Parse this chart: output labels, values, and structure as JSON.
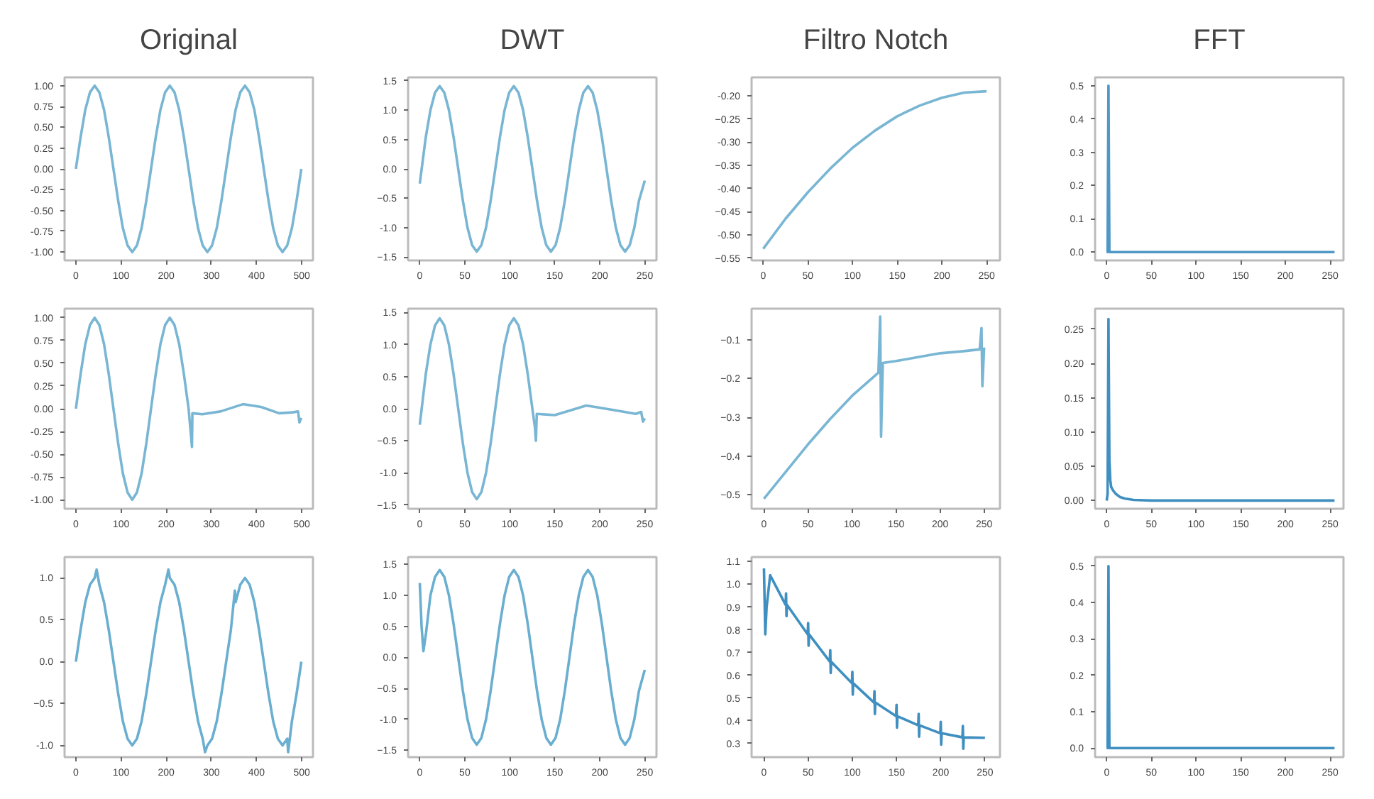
{
  "chart_data": [
    {
      "type": "line",
      "title": "Original",
      "color": "#79b6d3",
      "xlim": [
        -25,
        525
      ],
      "ylim": [
        -1.1,
        1.1
      ],
      "xticks": [
        0,
        100,
        200,
        300,
        400,
        500
      ],
      "yticks": [
        {
          "value": -1,
          "label": "-1.00"
        },
        {
          "value": -0.75,
          "label": "-0.75"
        },
        {
          "value": -0.5,
          "label": "-0.50"
        },
        {
          "value": -0.25,
          "label": "-0.25"
        },
        {
          "value": 0,
          "label": "0.00"
        },
        {
          "value": 0.25,
          "label": "0.25"
        },
        {
          "value": 0.5,
          "label": "0.50"
        },
        {
          "value": 0.75,
          "label": "0.75"
        },
        {
          "value": 1,
          "label": "1.00"
        }
      ],
      "x": [
        0,
        10.4,
        20.8,
        31.2,
        41.6,
        52,
        62.4,
        72.8,
        83.2,
        93.6,
        104,
        114.4,
        124.8,
        135.2,
        145.6,
        156,
        166.4,
        176.8,
        187.2,
        197.6,
        208,
        218.4,
        228.8,
        239.2,
        249.6,
        260,
        270.4,
        280.8,
        291.2,
        301.6,
        312,
        322.4,
        332.8,
        343.2,
        353.6,
        364,
        374.4,
        384.8,
        395.2,
        405.6,
        416,
        426.4,
        436.8,
        447.2,
        457.6,
        468,
        478.4,
        488.8,
        499.2
      ],
      "values": [
        0,
        0.38,
        0.71,
        0.92,
        1,
        0.92,
        0.71,
        0.38,
        0,
        -0.38,
        -0.71,
        -0.92,
        -1,
        -0.92,
        -0.71,
        -0.38,
        0,
        0.38,
        0.71,
        0.92,
        1,
        0.92,
        0.71,
        0.38,
        0,
        -0.38,
        -0.71,
        -0.92,
        -1,
        -0.92,
        -0.71,
        -0.38,
        0,
        0.38,
        0.71,
        0.92,
        1,
        0.92,
        0.71,
        0.38,
        0,
        -0.38,
        -0.71,
        -0.92,
        -1,
        -0.92,
        -0.71,
        -0.38,
        0
      ]
    },
    {
      "type": "line",
      "title": "DWT",
      "color": "#79b6d3",
      "xlim": [
        -13,
        263
      ],
      "ylim": [
        -1.56,
        1.56
      ],
      "xticks": [
        0,
        50,
        100,
        150,
        200,
        250
      ],
      "yticks": [
        -1.5,
        {
          "value": -1,
          "label": "-1.0"
        },
        -0.5,
        {
          "value": 0,
          "label": "0.0"
        },
        0.5,
        {
          "value": 1,
          "label": "1.0"
        },
        1.5
      ],
      "x": [
        0,
        6.65,
        11.8,
        16.95,
        22.1,
        27.25,
        32.4,
        37.55,
        42.7,
        47.85,
        53,
        58.15,
        63.3,
        68.45,
        73.6,
        78.75,
        83.9,
        89.05,
        94.2,
        99.35,
        104.5,
        109.65,
        114.8,
        119.95,
        125.1,
        130.25,
        135.4,
        140.55,
        145.7,
        150.85,
        156,
        161.15,
        166.3,
        171.45,
        176.6,
        181.75,
        186.9,
        192.05,
        197.2,
        202.35,
        207.5,
        212.65,
        217.8,
        222.95,
        228.1,
        233.25,
        238.4,
        243.55,
        250
      ],
      "values": [
        -0.25,
        0.54,
        1.0,
        1.3,
        1.41,
        1.3,
        1.0,
        0.54,
        0,
        -0.54,
        -1.0,
        -1.3,
        -1.41,
        -1.3,
        -1.0,
        -0.54,
        0,
        0.54,
        1.0,
        1.3,
        1.41,
        1.3,
        1.0,
        0.54,
        0,
        -0.54,
        -1.0,
        -1.3,
        -1.41,
        -1.3,
        -1.0,
        -0.54,
        0,
        0.54,
        1.0,
        1.3,
        1.41,
        1.3,
        1.0,
        0.54,
        0,
        -0.54,
        -1.0,
        -1.3,
        -1.41,
        -1.3,
        -1.0,
        -0.54,
        -0.2
      ]
    },
    {
      "type": "line",
      "title": "Filtro Notch",
      "color": "#79b6d3",
      "xlim": [
        -13,
        265
      ],
      "ylim": [
        -0.555,
        -0.16
      ],
      "xticks": [
        0,
        50,
        100,
        150,
        200,
        250
      ],
      "yticks": [
        -0.55,
        {
          "value": -0.5,
          "label": "-0.50"
        },
        -0.45,
        {
          "value": -0.4,
          "label": "-0.40"
        },
        -0.35,
        {
          "value": -0.3,
          "label": "-0.30"
        },
        -0.25,
        {
          "value": -0.2,
          "label": "-0.20"
        }
      ],
      "x": [
        0,
        25,
        50,
        75,
        100,
        125,
        150,
        175,
        200,
        225,
        250
      ],
      "values": [
        -0.53,
        -0.465,
        -0.408,
        -0.357,
        -0.312,
        -0.275,
        -0.244,
        -0.221,
        -0.204,
        -0.193,
        -0.19
      ]
    },
    {
      "type": "line",
      "title": "FFT",
      "color": "#4f98c6",
      "xlim": [
        -13,
        265
      ],
      "ylim": [
        -0.025,
        0.525
      ],
      "xticks": [
        0,
        50,
        100,
        150,
        200,
        250
      ],
      "yticks": [
        {
          "value": 0,
          "label": "0.0"
        },
        0.1,
        0.2,
        0.3,
        0.4,
        0.5
      ],
      "x": [
        0,
        1,
        2,
        3,
        4,
        255
      ],
      "values": [
        0,
        0,
        0.5,
        0,
        0,
        0
      ]
    },
    {
      "type": "line",
      "color": "#79b6d3",
      "xlim": [
        -25,
        525
      ],
      "ylim": [
        -1.1,
        1.1
      ],
      "xticks": [
        0,
        100,
        200,
        300,
        400,
        500
      ],
      "yticks": [
        {
          "value": -1,
          "label": "-1.00"
        },
        {
          "value": -0.75,
          "label": "-0.75"
        },
        {
          "value": -0.5,
          "label": "-0.50"
        },
        {
          "value": -0.25,
          "label": "-0.25"
        },
        {
          "value": 0,
          "label": "0.00"
        },
        {
          "value": 0.25,
          "label": "0.25"
        },
        {
          "value": 0.5,
          "label": "0.50"
        },
        {
          "value": 0.75,
          "label": "0.75"
        },
        {
          "value": 1,
          "label": "1.00"
        }
      ],
      "x": [
        0,
        10.4,
        20.8,
        31.2,
        41.6,
        52,
        62.4,
        72.8,
        83.2,
        93.6,
        104,
        114.4,
        124.8,
        135.2,
        145.6,
        156,
        166.4,
        176.8,
        187.2,
        197.6,
        208,
        218.4,
        228.8,
        239.2,
        249.6,
        255,
        257,
        258,
        280,
        320,
        370,
        410,
        450,
        480,
        492,
        495,
        499
      ],
      "values": [
        0,
        0.38,
        0.71,
        0.92,
        1,
        0.92,
        0.71,
        0.38,
        0,
        -0.38,
        -0.71,
        -0.92,
        -1,
        -0.92,
        -0.71,
        -0.38,
        0,
        0.38,
        0.71,
        0.92,
        1,
        0.92,
        0.71,
        0.38,
        0,
        -0.3,
        -0.42,
        -0.05,
        -0.06,
        -0.03,
        0.05,
        0.02,
        -0.05,
        -0.04,
        -0.03,
        -0.15,
        -0.1
      ]
    },
    {
      "type": "line",
      "color": "#79b6d3",
      "xlim": [
        -13,
        263
      ],
      "ylim": [
        -1.56,
        1.56
      ],
      "xticks": [
        0,
        50,
        100,
        150,
        200,
        250
      ],
      "yticks": [
        -1.5,
        {
          "value": -1,
          "label": "-1.0"
        },
        -0.5,
        {
          "value": 0,
          "label": "0.0"
        },
        0.5,
        {
          "value": 1,
          "label": "1.0"
        },
        1.5
      ],
      "x": [
        0,
        6.65,
        11.8,
        16.95,
        22.1,
        27.25,
        32.4,
        37.55,
        42.7,
        47.85,
        53,
        58.15,
        63.3,
        68.45,
        73.6,
        78.75,
        83.9,
        89.05,
        94.2,
        99.35,
        104.5,
        109.65,
        114.8,
        119.95,
        125.1,
        128,
        129,
        130,
        150,
        185,
        215,
        240,
        246,
        248,
        250
      ],
      "values": [
        -0.25,
        0.54,
        1.0,
        1.3,
        1.41,
        1.3,
        1.0,
        0.54,
        0,
        -0.54,
        -1.0,
        -1.3,
        -1.41,
        -1.3,
        -1.0,
        -0.54,
        0,
        0.54,
        1.0,
        1.3,
        1.41,
        1.3,
        1.0,
        0.54,
        0,
        -0.3,
        -0.5,
        -0.08,
        -0.1,
        0.05,
        -0.02,
        -0.08,
        -0.05,
        -0.2,
        -0.15
      ]
    },
    {
      "type": "line",
      "color": "#79b6d3",
      "xlim": [
        -14,
        268
      ],
      "ylim": [
        -0.536,
        -0.02
      ],
      "xticks": [
        0,
        50,
        100,
        150,
        200,
        250
      ],
      "yticks": [
        -0.5,
        -0.4,
        -0.3,
        -0.2,
        -0.1
      ],
      "x": [
        0,
        25,
        50,
        75,
        100,
        125,
        130,
        132,
        133,
        135,
        150,
        175,
        200,
        225,
        245,
        247,
        248,
        250
      ],
      "values": [
        -0.51,
        -0.44,
        -0.37,
        -0.305,
        -0.245,
        -0.195,
        -0.185,
        -0.04,
        -0.35,
        -0.16,
        -0.155,
        -0.145,
        -0.135,
        -0.13,
        -0.125,
        -0.07,
        -0.22,
        -0.12
      ]
    },
    {
      "type": "line",
      "color": "#3f8fc0",
      "xlim": [
        -13,
        265
      ],
      "ylim": [
        -0.012,
        0.28
      ],
      "xticks": [
        0,
        50,
        100,
        150,
        200,
        250
      ],
      "yticks": [
        {
          "value": 0,
          "label": "0.00"
        },
        0.05,
        {
          "value": 0.1,
          "label": "0.10"
        },
        0.15,
        {
          "value": 0.2,
          "label": "0.20"
        },
        0.25
      ],
      "x": [
        0,
        1,
        2,
        3,
        4,
        5,
        7,
        10,
        15,
        20,
        30,
        50,
        100,
        150,
        200,
        255
      ],
      "values": [
        0,
        0.01,
        0.265,
        0.06,
        0.03,
        0.02,
        0.015,
        0.01,
        0.005,
        0.003,
        0.001,
        0,
        0,
        0,
        0,
        0
      ]
    },
    {
      "type": "line",
      "color": "#6aaed0",
      "xlim": [
        -25,
        525
      ],
      "ylim": [
        -1.14,
        1.25
      ],
      "xticks": [
        0,
        100,
        200,
        300,
        400,
        500
      ],
      "yticks": [
        {
          "value": -1,
          "label": "-1.0"
        },
        -0.5,
        {
          "value": 0,
          "label": "0.0"
        },
        0.5,
        {
          "value": 1,
          "label": "1.0"
        }
      ],
      "x": [
        0,
        10.4,
        20.8,
        31.2,
        41.6,
        46,
        52,
        62.4,
        72.8,
        83.2,
        93.6,
        104,
        114.4,
        124.8,
        135.2,
        145.6,
        156,
        166.4,
        176.8,
        187.2,
        197.6,
        205,
        208,
        218.4,
        228.8,
        239.2,
        249.6,
        260,
        270.4,
        280.8,
        286,
        291.2,
        301.6,
        312,
        322.4,
        332.8,
        343.2,
        352,
        353.6,
        364,
        374.4,
        384.8,
        395.2,
        405.6,
        416,
        426.4,
        436.8,
        447.2,
        457.6,
        468,
        470,
        478.4,
        488.8,
        499.2
      ],
      "values": [
        0,
        0.38,
        0.71,
        0.92,
        1,
        1.1,
        0.92,
        0.71,
        0.38,
        0,
        -0.38,
        -0.71,
        -0.92,
        -1,
        -0.92,
        -0.71,
        -0.38,
        0,
        0.38,
        0.71,
        0.92,
        1.1,
        1,
        0.92,
        0.71,
        0.38,
        0,
        -0.38,
        -0.71,
        -0.92,
        -1.08,
        -1,
        -0.92,
        -0.71,
        -0.38,
        0,
        0.38,
        0.85,
        0.71,
        0.92,
        1,
        0.92,
        0.71,
        0.38,
        0,
        -0.38,
        -0.71,
        -0.92,
        -1,
        -0.92,
        -1.08,
        -0.71,
        -0.38,
        0
      ]
    },
    {
      "type": "line",
      "color": "#6aaed0",
      "xlim": [
        -13,
        263
      ],
      "ylim": [
        -1.61,
        1.62
      ],
      "xticks": [
        0,
        50,
        100,
        150,
        200,
        250
      ],
      "yticks": [
        -1.5,
        {
          "value": -1,
          "label": "-1.0"
        },
        -0.5,
        {
          "value": 0,
          "label": "0.0"
        },
        0.5,
        {
          "value": 1,
          "label": "1.0"
        },
        1.5
      ],
      "x": [
        0,
        2,
        4,
        7,
        11.8,
        16.95,
        22.1,
        27.25,
        32.4,
        37.55,
        42.7,
        47.85,
        53,
        58.15,
        63.3,
        68.45,
        73.6,
        78.75,
        83.9,
        89.05,
        94.2,
        99.35,
        104.5,
        109.65,
        114.8,
        119.95,
        125.1,
        130.25,
        135.4,
        140.55,
        145.7,
        150.85,
        156,
        161.15,
        166.3,
        171.45,
        176.6,
        181.75,
        186.9,
        192.05,
        197.2,
        202.35,
        207.5,
        212.65,
        217.8,
        222.95,
        228.1,
        233.25,
        238.4,
        243.55,
        250
      ],
      "values": [
        1.2,
        0.5,
        0.1,
        0.4,
        1.0,
        1.3,
        1.41,
        1.3,
        1.0,
        0.54,
        0,
        -0.54,
        -1.0,
        -1.3,
        -1.41,
        -1.3,
        -1.0,
        -0.54,
        0,
        0.54,
        1.0,
        1.3,
        1.41,
        1.3,
        1.0,
        0.54,
        0,
        -0.54,
        -1.0,
        -1.3,
        -1.41,
        -1.3,
        -1.0,
        -0.54,
        0,
        0.54,
        1.0,
        1.3,
        1.41,
        1.3,
        1.0,
        0.54,
        0,
        -0.54,
        -1.0,
        -1.3,
        -1.41,
        -1.3,
        -1.0,
        -0.54,
        -0.2
      ]
    },
    {
      "type": "line",
      "color": "#3f8fc0",
      "xlim": [
        -14,
        267
      ],
      "ylim": [
        0.24,
        1.12
      ],
      "xticks": [
        0,
        50,
        100,
        150,
        200,
        250
      ],
      "yticks": [
        0.3,
        0.4,
        0.5,
        0.6,
        0.7,
        0.8,
        0.9,
        {
          "value": 1,
          "label": "1.0"
        },
        1.1
      ],
      "x": [
        0,
        1.5,
        3,
        7,
        24.5,
        25,
        25.5,
        26,
        49.5,
        50,
        50.5,
        51,
        74.5,
        75,
        75.5,
        76,
        99.5,
        100,
        100.5,
        101,
        124.5,
        125,
        125.5,
        126,
        149.5,
        150,
        150.5,
        151,
        174.5,
        175,
        175.5,
        176,
        199.5,
        200,
        200.5,
        201,
        224.5,
        225,
        225.5,
        226,
        250
      ],
      "values": [
        1.07,
        0.78,
        0.9,
        1.04,
        0.91,
        0.96,
        0.86,
        0.91,
        0.78,
        0.83,
        0.73,
        0.78,
        0.66,
        0.71,
        0.61,
        0.66,
        0.565,
        0.615,
        0.515,
        0.565,
        0.48,
        0.53,
        0.43,
        0.48,
        0.42,
        0.47,
        0.37,
        0.42,
        0.38,
        0.43,
        0.33,
        0.38,
        0.345,
        0.395,
        0.295,
        0.345,
        0.327,
        0.377,
        0.277,
        0.327,
        0.325
      ]
    },
    {
      "type": "line",
      "color": "#3f8fc0",
      "xlim": [
        -13,
        265
      ],
      "ylim": [
        -0.025,
        0.525
      ],
      "xticks": [
        0,
        50,
        100,
        150,
        200,
        250
      ],
      "yticks": [
        {
          "value": 0,
          "label": "0.0"
        },
        0.1,
        0.2,
        0.3,
        0.4,
        0.5
      ],
      "x": [
        0,
        1,
        2,
        3,
        4,
        255
      ],
      "values": [
        0,
        0,
        0.5,
        0,
        0,
        0
      ]
    }
  ]
}
